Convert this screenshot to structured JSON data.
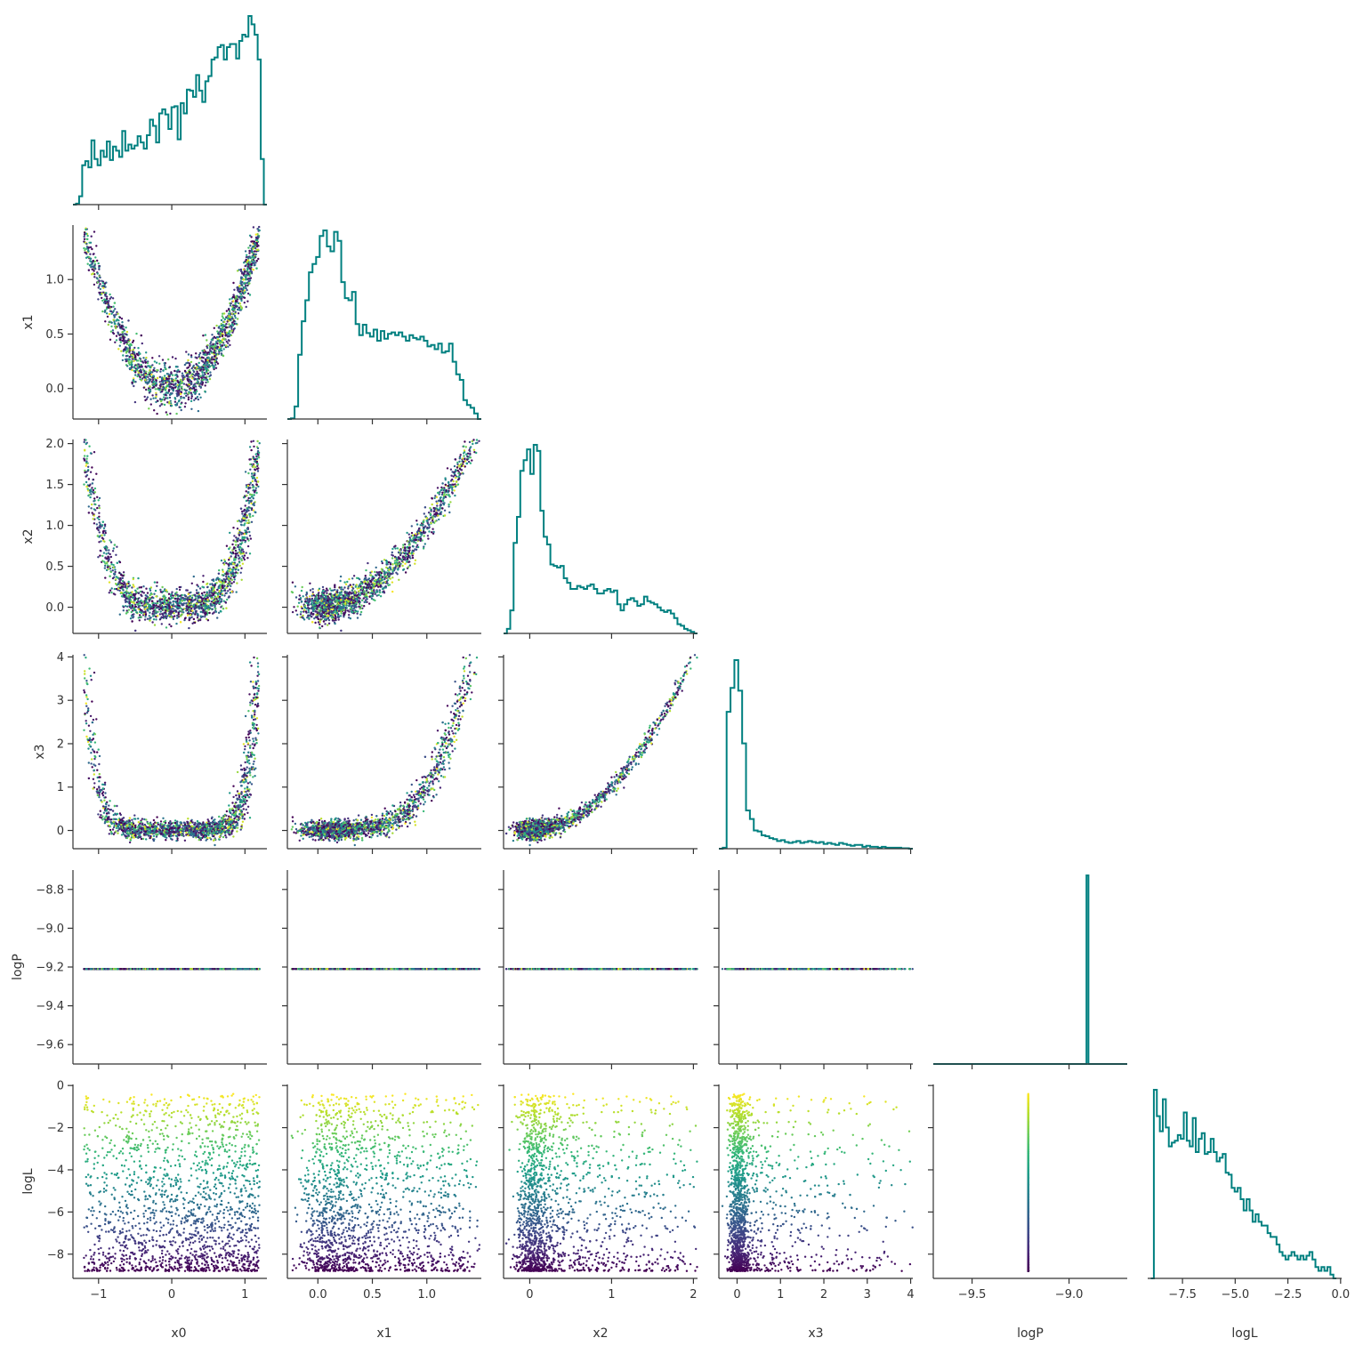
{
  "chart_data": {
    "type": "scatter",
    "layout": "corner-plot",
    "parameters": [
      "x0",
      "x1",
      "x2",
      "x3",
      "logP",
      "logL"
    ],
    "axis_labels": {
      "x0": "x0",
      "x1": "x1",
      "x2": "x2",
      "x3": "x3",
      "logP": "logP",
      "logL": "logL"
    },
    "ranges": {
      "x0": [
        -1.35,
        1.3
      ],
      "x1": [
        -0.28,
        1.5
      ],
      "x2": [
        -0.32,
        2.05
      ],
      "x3": [
        -0.42,
        4.05
      ],
      "logP": [
        -9.7,
        -8.7
      ],
      "logL": [
        -9.15,
        0.05
      ]
    },
    "ticks": {
      "x0": {
        "values": [
          -1,
          0,
          1
        ],
        "labels": [
          "−1",
          "0",
          "1"
        ]
      },
      "x1": {
        "values": [
          0.0,
          0.5,
          1.0
        ],
        "labels": [
          "0.0",
          "0.5",
          "1.0"
        ]
      },
      "x2": {
        "values": [
          0,
          1,
          2
        ],
        "labels": [
          "0",
          "1",
          "2"
        ]
      },
      "x3": {
        "values": [
          0,
          1,
          2,
          3,
          4
        ],
        "labels": [
          "0",
          "1",
          "2",
          "3",
          "4"
        ]
      },
      "logP": {
        "values": [
          -9.5,
          -9.0
        ],
        "labels": [
          "−9.5",
          "−9.0"
        ]
      },
      "logL": {
        "values": [
          -7.5,
          -5.0,
          -2.5,
          0.0
        ],
        "labels": [
          "−7.5",
          "−5.0",
          "−2.5",
          "0.0"
        ]
      }
    },
    "row_ticks": {
      "x1": {
        "values": [
          0.0,
          0.5,
          1.0
        ],
        "labels": [
          "0.0",
          "0.5",
          "1.0"
        ]
      },
      "x2": {
        "values": [
          0.0,
          0.5,
          1.0,
          1.5,
          2.0
        ],
        "labels": [
          "0.0",
          "0.5",
          "1.0",
          "1.5",
          "2.0"
        ]
      },
      "x3": {
        "values": [
          0,
          1,
          2,
          3,
          4
        ],
        "labels": [
          "0",
          "1",
          "2",
          "3",
          "4"
        ]
      },
      "logP": {
        "values": [
          -9.6,
          -9.4,
          -9.2,
          -9.0,
          -8.8
        ],
        "labels": [
          "−9.6",
          "−9.4",
          "−9.2",
          "−9.0",
          "−8.8"
        ]
      },
      "logL": {
        "values": [
          -8,
          -6,
          -4,
          -2,
          0
        ],
        "labels": [
          "−8",
          "−6",
          "−4",
          "−2",
          "0"
        ]
      }
    },
    "logP_constant": -9.21,
    "samples_generative_model": {
      "n": 1800,
      "x0": "uniform-ish on [-1.2, 1.2], weighted toward +1",
      "x1": "x0^2 + noise(0.1)",
      "x2": "x1^2 + noise(0.1)",
      "x3": "x2^2 + noise(0.1)",
      "logL": "uniform on [-8.8, -0.4]"
    },
    "histograms": {
      "x0": {
        "edges_range": [
          -1.35,
          1.3
        ],
        "heights": [
          0,
          1,
          8,
          38,
          42,
          36,
          62,
          44,
          38,
          52,
          46,
          61,
          43,
          56,
          52,
          46,
          71,
          52,
          58,
          54,
          57,
          66,
          60,
          54,
          67,
          82,
          76,
          60,
          88,
          92,
          87,
          73,
          94,
          95,
          63,
          98,
          88,
          111,
          110,
          104,
          125,
          110,
          99,
          119,
          124,
          140,
          142,
          152,
          154,
          140,
          152,
          155,
          155,
          141,
          158,
          164,
          162,
          182,
          174,
          164,
          140,
          44,
          0
        ]
      },
      "x1": {
        "edges_range": [
          -0.28,
          1.5
        ],
        "heights": [
          0,
          1,
          18,
          92,
          140,
          170,
          210,
          222,
          232,
          262,
          270,
          247,
          240,
          268,
          255,
          196,
          173,
          170,
          182,
          136,
          120,
          135,
          123,
          118,
          128,
          112,
          126,
          115,
          122,
          124,
          120,
          124,
          118,
          112,
          120,
          116,
          114,
          118,
          112,
          104,
          106,
          100,
          108,
          95,
          97,
          108,
          82,
          64,
          56,
          27,
          20,
          16,
          8,
          0
        ]
      },
      "x2": {
        "edges_range": [
          -0.32,
          2.05
        ],
        "heights": [
          0,
          6,
          30,
          118,
          152,
          212,
          226,
          240,
          208,
          246,
          238,
          160,
          126,
          116,
          90,
          88,
          86,
          88,
          72,
          66,
          58,
          58,
          62,
          60,
          58,
          62,
          64,
          58,
          52,
          52,
          56,
          58,
          54,
          56,
          38,
          30,
          38,
          44,
          46,
          42,
          36,
          38,
          48,
          42,
          40,
          38,
          34,
          30,
          28,
          30,
          26,
          20,
          12,
          10,
          6,
          4,
          2,
          0
        ]
      },
      "x3": {
        "edges_range": [
          -0.42,
          4.05
        ],
        "heights": [
          0,
          2,
          286,
          336,
          394,
          330,
          220,
          80,
          62,
          38,
          36,
          28,
          26,
          22,
          20,
          16,
          18,
          14,
          12,
          14,
          16,
          12,
          14,
          16,
          14,
          12,
          14,
          10,
          12,
          10,
          8,
          12,
          10,
          8,
          6,
          8,
          8,
          4,
          6,
          4,
          4,
          2,
          4,
          2,
          2,
          2,
          2,
          1,
          1,
          0
        ]
      },
      "logP": {
        "edges_range": [
          -9.7,
          -8.7
        ],
        "heights": [
          0,
          0,
          0,
          0,
          0,
          0,
          0,
          0,
          0,
          0,
          0,
          0,
          0,
          0,
          0,
          0,
          0,
          0,
          0,
          0,
          0,
          0,
          0,
          0,
          0,
          0,
          0,
          0,
          0,
          0,
          0,
          0,
          0,
          0,
          0,
          0,
          0,
          0,
          0,
          0,
          0,
          0,
          0,
          0,
          0,
          0,
          0,
          0,
          0,
          0,
          0,
          0,
          0,
          0,
          0,
          0,
          0,
          0,
          0,
          0,
          0,
          0,
          0,
          0,
          0,
          0,
          0,
          0,
          0,
          0,
          0,
          0,
          0,
          0,
          0,
          0,
          0,
          0,
          0,
          1,
          0,
          0,
          0,
          0,
          0,
          0,
          0,
          0,
          0,
          0,
          0,
          0,
          0,
          0,
          0,
          0,
          0,
          0,
          0,
          0
        ]
      },
      "logL": {
        "edges_range": [
          -9.0,
          -0.2
        ],
        "heights": [
          0,
          1,
          0.86,
          0.78,
          0.95,
          0.8,
          0.7,
          0.72,
          0.73,
          0.76,
          0.74,
          0.88,
          0.73,
          0.7,
          0.85,
          0.67,
          0.74,
          0.77,
          0.66,
          0.67,
          0.74,
          0.67,
          0.62,
          0.64,
          0.66,
          0.56,
          0.55,
          0.48,
          0.46,
          0.48,
          0.42,
          0.36,
          0.42,
          0.36,
          0.3,
          0.34,
          0.3,
          0.28,
          0.28,
          0.24,
          0.22,
          0.22,
          0.18,
          0.14,
          0.12,
          0.1,
          0.12,
          0.14,
          0.12,
          0.1,
          0.12,
          0.1,
          0.12,
          0.14,
          0.1,
          0.06,
          0.04,
          0.06,
          0.04,
          0.06,
          0.02,
          0
        ]
      }
    },
    "hist_color": "#008080",
    "colormap": "viridis",
    "color_by": "logL",
    "grid": false,
    "legend": "none"
  }
}
